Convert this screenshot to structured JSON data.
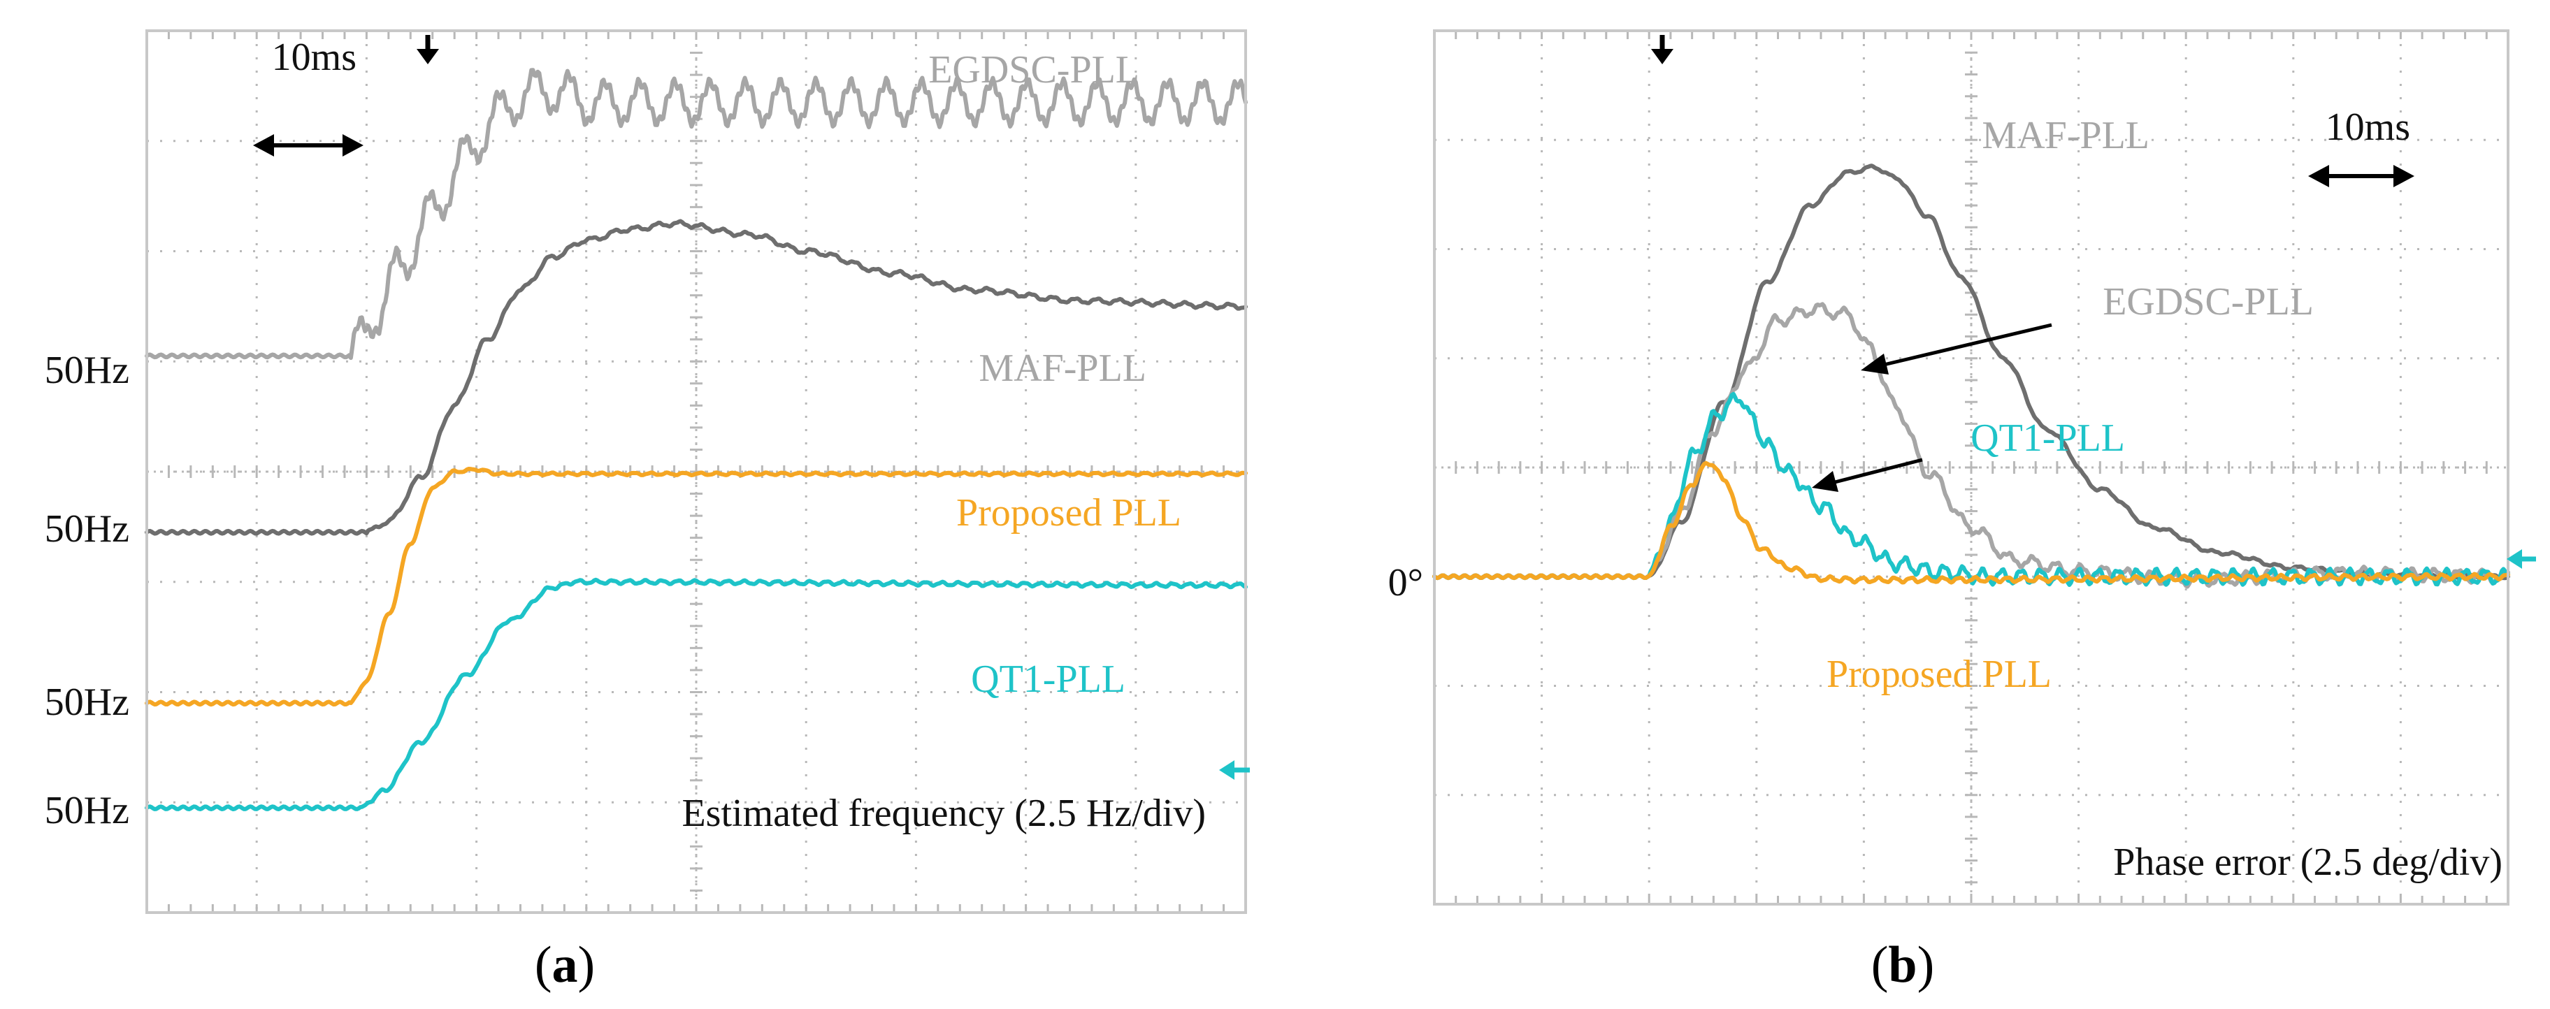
{
  "figure": {
    "panel_a_caption": "a",
    "panel_b_caption": "b"
  },
  "colors": {
    "egdsc": "#a6a6a6",
    "maf": "#6e6e6e",
    "proposed": "#f5a623",
    "qt1": "#1ec3c8",
    "grid": "#b8b8b8",
    "frame": "#c8c8c8",
    "text": "#111111",
    "caption": "#000000"
  },
  "icons": {
    "trigger_marker": "down-arrow-icon",
    "channel_marker": "left-arrow-icon",
    "time_scale": "double-arrow-icon"
  },
  "chart_data": [
    {
      "type": "line",
      "panel": "a",
      "title": "Estimated frequency (2.5 Hz/div)",
      "time_scale_label": "10ms",
      "x_unit": "div (10 ms/div)",
      "xlim": [
        0,
        10
      ],
      "ylim": [
        0,
        8
      ],
      "trigger_x": 2.55,
      "grid": true,
      "channel_marker_y": 1.3,
      "reference_labels": [
        "50Hz",
        "50Hz",
        "50Hz",
        "50Hz"
      ],
      "series": [
        {
          "name": "EGDSC-PLL",
          "label": "EGDSC-PLL",
          "color_key": "egdsc",
          "baseline_label": "50Hz",
          "x": [
            0,
            1.85,
            1.95,
            2.1,
            2.3,
            2.6,
            2.9,
            3.2,
            3.5,
            3.75,
            4.0,
            10
          ],
          "y": [
            5.05,
            5.05,
            5.2,
            5.45,
            5.85,
            6.35,
            6.85,
            7.25,
            7.45,
            7.45,
            7.35,
            7.35
          ],
          "ripple_amplitude": 0.18,
          "ripple_period": 0.32
        },
        {
          "name": "MAF-PLL",
          "label": "MAF-PLL",
          "color_key": "maf",
          "baseline_label": "50Hz",
          "x": [
            0,
            2.0,
            2.2,
            2.5,
            2.8,
            3.1,
            3.4,
            3.7,
            4.0,
            4.4,
            4.8,
            5.5,
            6.0,
            6.8,
            7.5,
            8.5,
            10
          ],
          "y": [
            3.45,
            3.45,
            3.55,
            3.95,
            4.6,
            5.2,
            5.65,
            5.95,
            6.1,
            6.2,
            6.25,
            6.15,
            6.0,
            5.8,
            5.65,
            5.55,
            5.5
          ],
          "ripple_amplitude": 0.02,
          "ripple_period": 0.2
        },
        {
          "name": "Proposed PLL",
          "label": "Proposed PLL",
          "color_key": "proposed",
          "baseline_label": "50Hz",
          "x": [
            0,
            1.85,
            2.0,
            2.2,
            2.4,
            2.6,
            2.8,
            3.0,
            3.2,
            10
          ],
          "y": [
            1.9,
            1.9,
            2.1,
            2.7,
            3.35,
            3.85,
            4.0,
            4.02,
            3.98,
            3.98
          ],
          "ripple_amplitude": 0.01,
          "ripple_period": 0.15
        },
        {
          "name": "QT1-PLL",
          "label": "QT1-PLL",
          "color_key": "qt1",
          "baseline_label": "50Hz",
          "x": [
            0,
            1.95,
            2.15,
            2.5,
            2.9,
            3.3,
            3.7,
            3.9,
            10
          ],
          "y": [
            0.95,
            0.95,
            1.1,
            1.55,
            2.15,
            2.65,
            2.95,
            3.0,
            2.97
          ],
          "ripple_amplitude": 0.015,
          "ripple_period": 0.15
        }
      ]
    },
    {
      "type": "line",
      "panel": "b",
      "title": "Phase error (2.5 deg/div)",
      "time_scale_label": "10ms",
      "x_unit": "div (10 ms/div)",
      "xlim": [
        0,
        10
      ],
      "ylim": [
        0,
        8
      ],
      "trigger_x": 2.05,
      "grid": true,
      "zero_label": "0°",
      "zero_y": 3.0,
      "channel_marker_y": 3.15,
      "series": [
        {
          "name": "MAF-PLL",
          "label": "MAF-PLL",
          "color_key": "maf",
          "x": [
            0,
            2.0,
            2.3,
            2.7,
            3.1,
            3.5,
            3.85,
            4.1,
            4.3,
            4.6,
            4.9,
            5.3,
            5.7,
            6.2,
            6.7,
            7.3,
            8.0,
            8.8,
            10
          ],
          "y": [
            3.0,
            3.0,
            3.5,
            4.6,
            5.7,
            6.4,
            6.7,
            6.75,
            6.65,
            6.3,
            5.75,
            5.0,
            4.35,
            3.8,
            3.45,
            3.22,
            3.08,
            3.02,
            3.0
          ],
          "ripple_amplitude": 0.015,
          "ripple_period": 0.2
        },
        {
          "name": "EGDSC-PLL",
          "label": "EGDSC-PLL",
          "color_key": "egdsc",
          "x": [
            0,
            2.0,
            2.3,
            2.6,
            2.9,
            3.2,
            3.55,
            3.85,
            4.05,
            4.3,
            4.6,
            5.0,
            5.4,
            6.0,
            7.0,
            8.5,
            10
          ],
          "y": [
            3.0,
            3.0,
            3.6,
            4.35,
            4.9,
            5.35,
            5.45,
            5.4,
            5.1,
            4.55,
            3.95,
            3.45,
            3.15,
            3.05,
            2.97,
            3.03,
            3.0
          ],
          "ripple_amplitude": 0.05,
          "ripple_period": 0.22
        },
        {
          "name": "QT1-PLL",
          "label": "QT1-PLL",
          "color_key": "qt1",
          "x": [
            0,
            2.0,
            2.2,
            2.4,
            2.65,
            2.85,
            2.95,
            3.1,
            3.3,
            3.6,
            3.9,
            4.3,
            4.7,
            5.2,
            10
          ],
          "y": [
            3.0,
            3.0,
            3.5,
            4.1,
            4.5,
            4.65,
            4.45,
            4.2,
            3.95,
            3.65,
            3.35,
            3.12,
            3.04,
            3.0,
            3.0
          ],
          "ripple_amplitude": 0.06,
          "ripple_period": 0.18
        },
        {
          "name": "Proposed PLL",
          "label": "Proposed PLL",
          "color_key": "proposed",
          "x": [
            0,
            2.0,
            2.2,
            2.4,
            2.55,
            2.7,
            2.85,
            3.05,
            3.3,
            3.6,
            4.0,
            10
          ],
          "y": [
            3.0,
            3.0,
            3.45,
            3.85,
            4.05,
            3.9,
            3.55,
            3.25,
            3.08,
            2.98,
            2.97,
            3.0
          ],
          "ripple_amplitude": 0.02,
          "ripple_period": 0.15
        }
      ]
    }
  ]
}
